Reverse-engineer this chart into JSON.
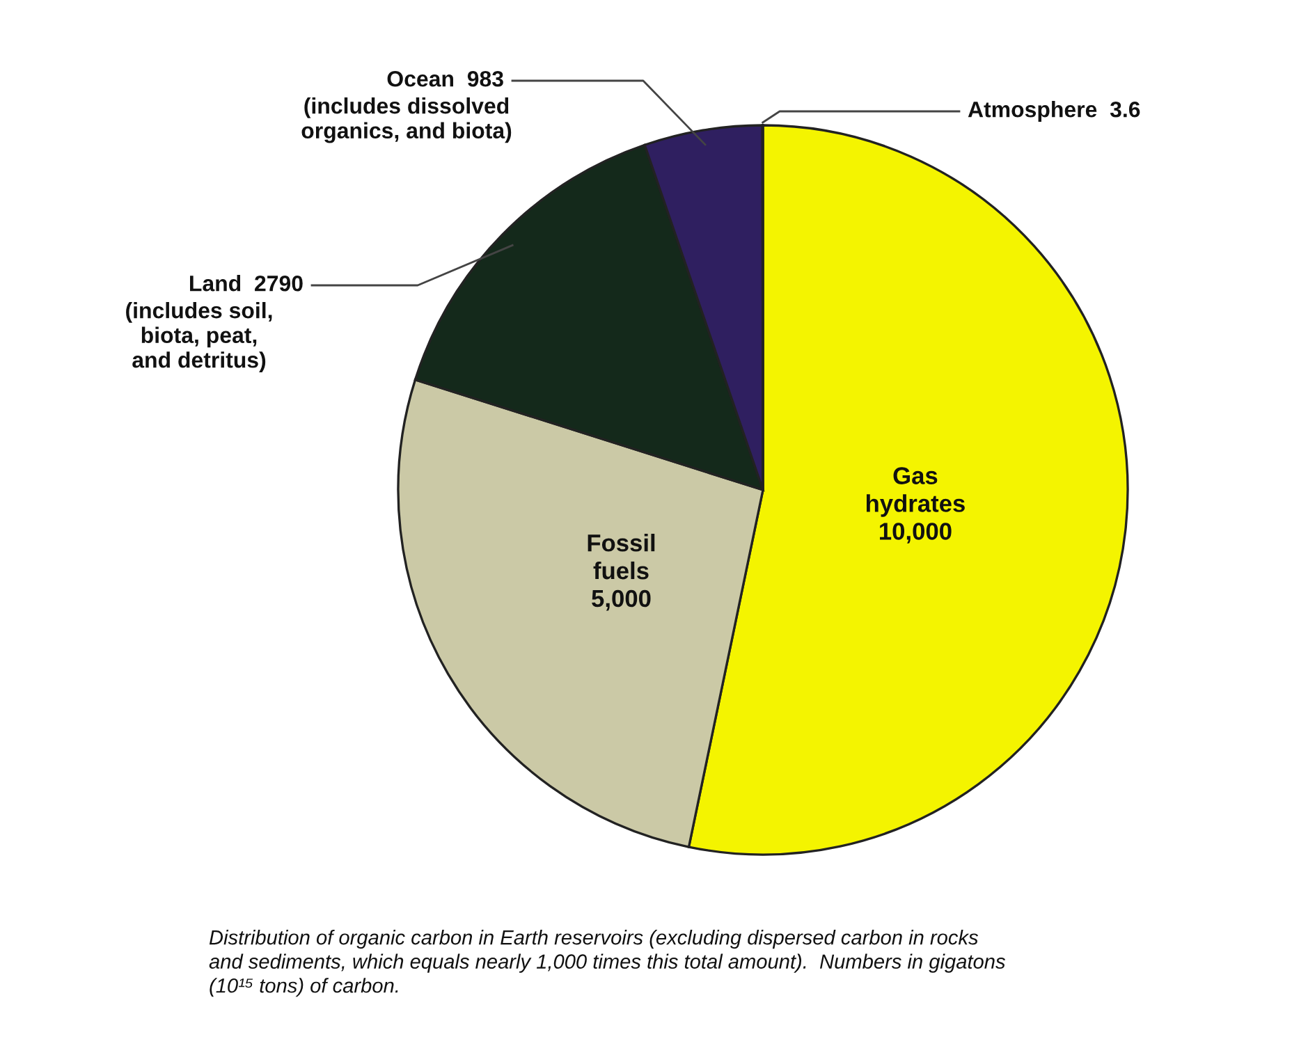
{
  "chart_data": {
    "type": "pie",
    "categories": [
      "Gas hydrates",
      "Fossil fuels",
      "Land",
      "Ocean",
      "Atmosphere"
    ],
    "values": [
      10000,
      5000,
      2790,
      983,
      3.6
    ],
    "value_labels": [
      "10,000",
      "5,000",
      "2790",
      "983",
      "3.6"
    ],
    "colors": [
      "#f4f400",
      "#cbc9a6",
      "#14291b",
      "#2f1f60",
      "#e8e8e8"
    ],
    "annotations": [
      "(includes soil,\nbiota, peat,\nand detritus)",
      "(includes dissolved\norganics, and biota)",
      "Distribution of organic carbon in Earth reservoirs (excluding dispersed carbon in rocks\nand sediments, which equals nearly 1,000 times this total amount).  Numbers in gigatons\n(10¹⁵ tons) of carbon."
    ],
    "legend": false
  }
}
